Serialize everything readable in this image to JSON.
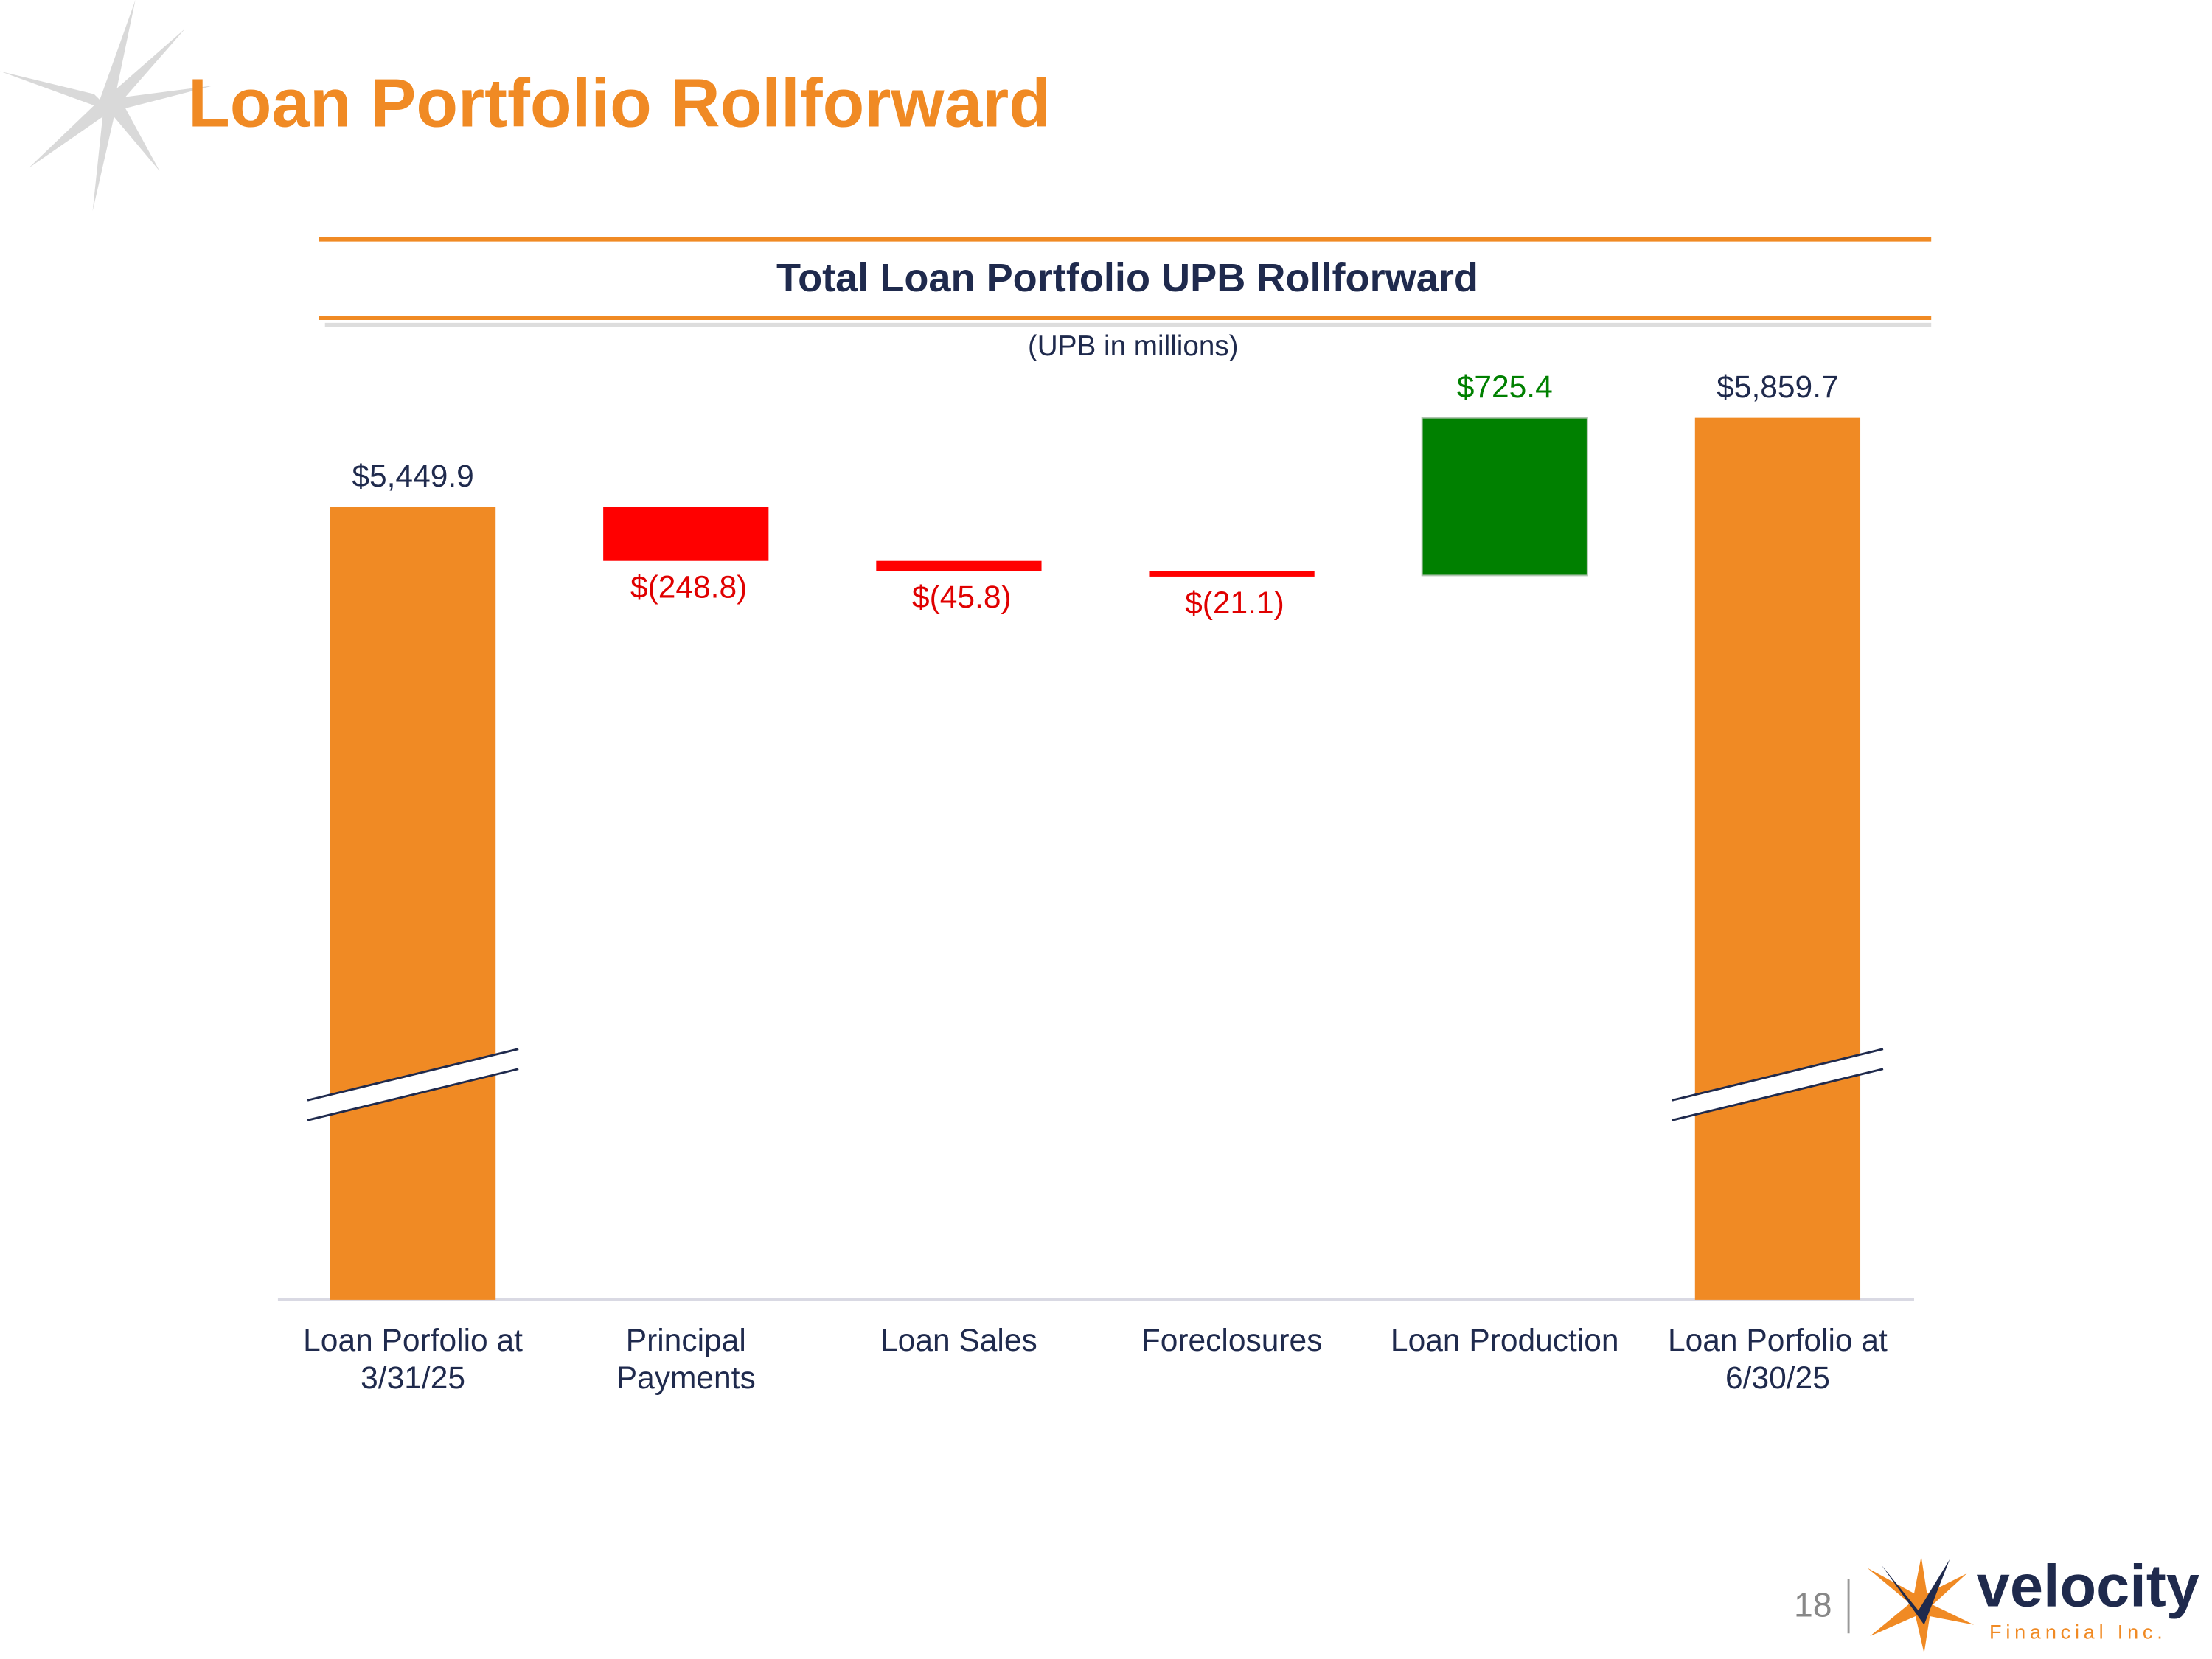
{
  "page_title": "Loan Portfolio Rollforward",
  "chart_data": {
    "type": "waterfall",
    "title": "Total Loan Portfolio UPB Rollforward",
    "subtitle": "(UPB in millions)",
    "categories": [
      "Loan Porfolio at\n3/31/25",
      "Principal\nPayments",
      "Loan Sales",
      "Foreclosures",
      "Loan Production",
      "Loan Porfolio at\n6/30/25"
    ],
    "measure": [
      "absolute",
      "relative",
      "relative",
      "relative",
      "relative",
      "total"
    ],
    "values": [
      5449.9,
      -248.8,
      -45.8,
      -21.1,
      725.4,
      5859.7
    ],
    "value_labels": [
      "$5,449.9",
      "$(248.8)",
      "$(45.8)",
      "$(21.1)",
      "$725.4",
      "$5,859.7"
    ],
    "colors": [
      "#f08a24",
      "#ff0000",
      "#ff0000",
      "#ff0000",
      "#008000",
      "#f08a24"
    ],
    "label_colors": [
      "#1f2a4d",
      "#e00000",
      "#e00000",
      "#e00000",
      "#008000",
      "#1f2a4d"
    ],
    "ylim": [
      1800,
      5900
    ],
    "axis_break": true
  },
  "footer": {
    "page_number": "18",
    "logo": "velocity",
    "logo_sub": "Financial Inc."
  }
}
